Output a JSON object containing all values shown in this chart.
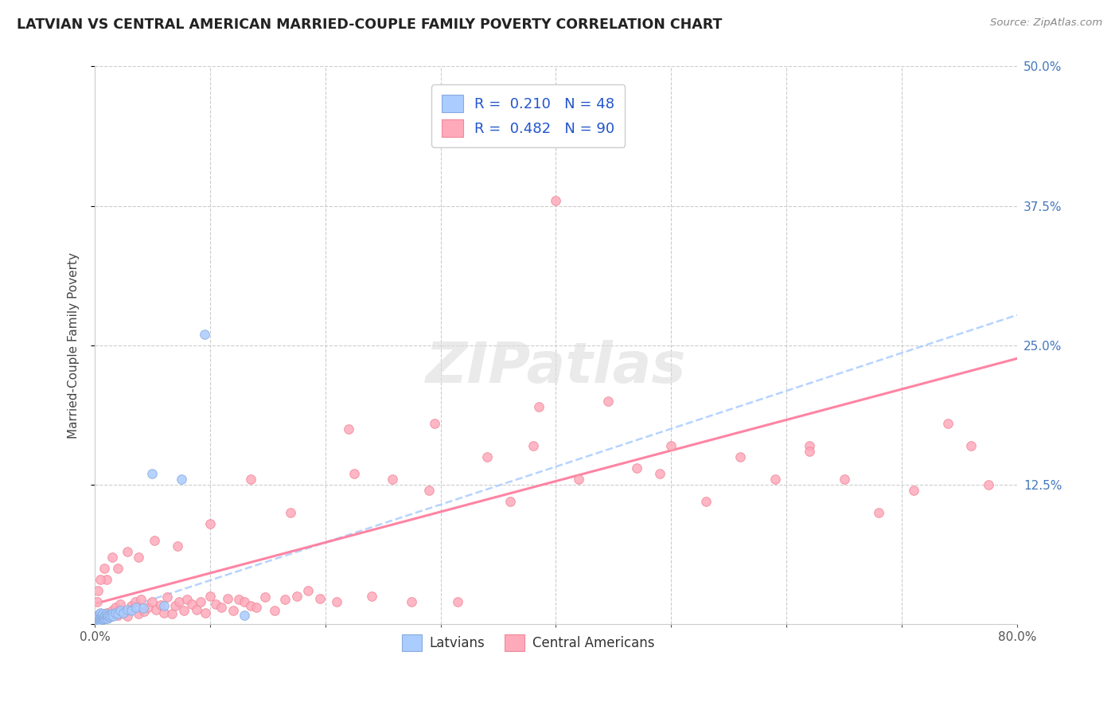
{
  "title": "LATVIAN VS CENTRAL AMERICAN MARRIED-COUPLE FAMILY POVERTY CORRELATION CHART",
  "source": "Source: ZipAtlas.com",
  "ylabel": "Married-Couple Family Poverty",
  "xlim": [
    0.0,
    0.8
  ],
  "ylim": [
    0.0,
    0.5
  ],
  "latvian_color": "#aaccff",
  "latvian_edge_color": "#88aadd",
  "central_american_color": "#ffaabb",
  "central_american_edge_color": "#ee8899",
  "trend_latvian_color": "#aaccff",
  "trend_central_american_color": "#ff7799",
  "background_color": "#ffffff",
  "legend_latvian_label": "R =  0.210   N = 48",
  "legend_central_label": "R =  0.482   N = 90",
  "watermark": "ZIPatlas",
  "latvian_x": [
    0.001,
    0.001,
    0.002,
    0.002,
    0.002,
    0.003,
    0.003,
    0.003,
    0.003,
    0.004,
    0.004,
    0.004,
    0.005,
    0.005,
    0.005,
    0.005,
    0.006,
    0.006,
    0.006,
    0.007,
    0.007,
    0.007,
    0.008,
    0.008,
    0.009,
    0.009,
    0.01,
    0.01,
    0.011,
    0.011,
    0.012,
    0.013,
    0.014,
    0.015,
    0.016,
    0.018,
    0.02,
    0.022,
    0.025,
    0.028,
    0.032,
    0.036,
    0.042,
    0.05,
    0.06,
    0.075,
    0.095,
    0.13
  ],
  "latvian_y": [
    0.002,
    0.004,
    0.003,
    0.005,
    0.007,
    0.002,
    0.004,
    0.006,
    0.008,
    0.003,
    0.005,
    0.009,
    0.003,
    0.005,
    0.007,
    0.01,
    0.004,
    0.006,
    0.008,
    0.004,
    0.006,
    0.009,
    0.005,
    0.007,
    0.005,
    0.008,
    0.006,
    0.009,
    0.005,
    0.008,
    0.007,
    0.006,
    0.008,
    0.009,
    0.007,
    0.01,
    0.009,
    0.012,
    0.01,
    0.013,
    0.012,
    0.015,
    0.014,
    0.135,
    0.016,
    0.13,
    0.26,
    0.008
  ],
  "central_x": [
    0.005,
    0.008,
    0.01,
    0.012,
    0.015,
    0.018,
    0.02,
    0.022,
    0.025,
    0.028,
    0.03,
    0.032,
    0.035,
    0.038,
    0.04,
    0.043,
    0.046,
    0.05,
    0.053,
    0.057,
    0.06,
    0.063,
    0.067,
    0.07,
    0.073,
    0.077,
    0.08,
    0.084,
    0.088,
    0.092,
    0.096,
    0.1,
    0.105,
    0.11,
    0.115,
    0.12,
    0.125,
    0.13,
    0.135,
    0.14,
    0.148,
    0.156,
    0.165,
    0.175,
    0.185,
    0.195,
    0.21,
    0.225,
    0.24,
    0.258,
    0.275,
    0.295,
    0.315,
    0.34,
    0.36,
    0.38,
    0.4,
    0.42,
    0.445,
    0.47,
    0.5,
    0.53,
    0.56,
    0.59,
    0.62,
    0.65,
    0.68,
    0.71,
    0.74,
    0.76,
    0.775,
    0.62,
    0.49,
    0.385,
    0.29,
    0.22,
    0.17,
    0.135,
    0.1,
    0.072,
    0.052,
    0.038,
    0.028,
    0.02,
    0.015,
    0.01,
    0.008,
    0.005,
    0.003,
    0.002
  ],
  "central_y": [
    0.005,
    0.008,
    0.01,
    0.007,
    0.012,
    0.015,
    0.008,
    0.018,
    0.01,
    0.007,
    0.013,
    0.016,
    0.02,
    0.009,
    0.022,
    0.011,
    0.015,
    0.02,
    0.013,
    0.017,
    0.01,
    0.024,
    0.009,
    0.016,
    0.02,
    0.012,
    0.022,
    0.018,
    0.013,
    0.02,
    0.01,
    0.025,
    0.018,
    0.015,
    0.023,
    0.012,
    0.022,
    0.02,
    0.016,
    0.015,
    0.024,
    0.012,
    0.022,
    0.025,
    0.03,
    0.023,
    0.02,
    0.135,
    0.025,
    0.13,
    0.02,
    0.18,
    0.02,
    0.15,
    0.11,
    0.16,
    0.38,
    0.13,
    0.2,
    0.14,
    0.16,
    0.11,
    0.15,
    0.13,
    0.16,
    0.13,
    0.1,
    0.12,
    0.18,
    0.16,
    0.125,
    0.155,
    0.135,
    0.195,
    0.12,
    0.175,
    0.1,
    0.13,
    0.09,
    0.07,
    0.075,
    0.06,
    0.065,
    0.05,
    0.06,
    0.04,
    0.05,
    0.04,
    0.03,
    0.02
  ]
}
